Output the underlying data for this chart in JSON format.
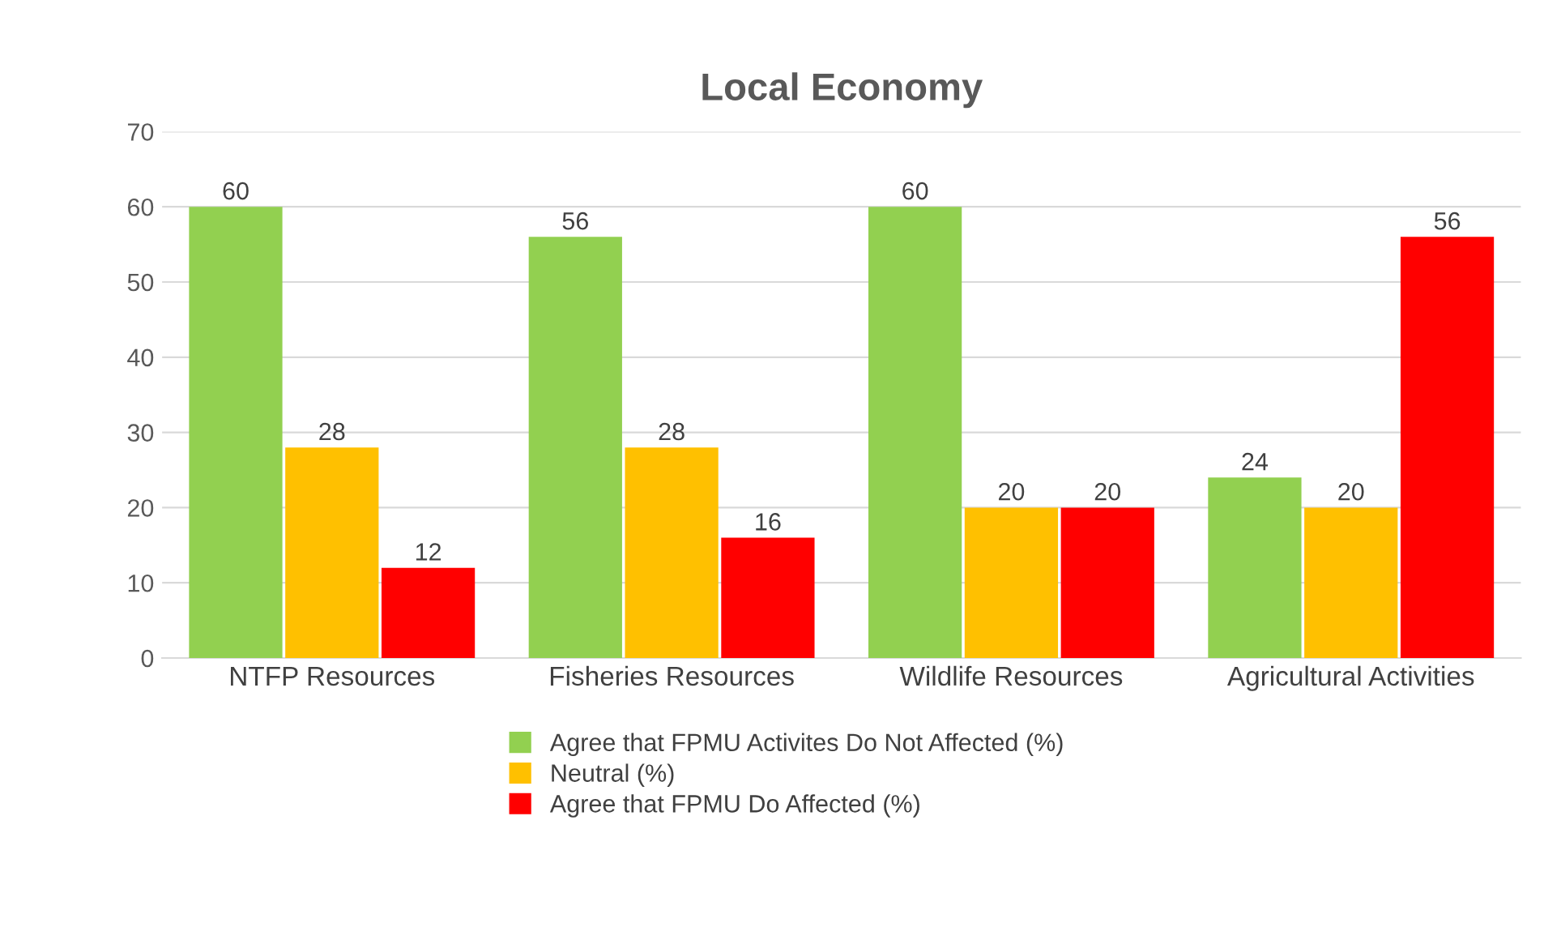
{
  "chart_data": {
    "type": "bar",
    "title": "Local Economy",
    "categories": [
      "NTFP Resources",
      "Fisheries Resources",
      "Wildlife Resources",
      "Agricultural Activities"
    ],
    "series": [
      {
        "name": "Agree that FPMU Activites Do Not Affected (%)",
        "color": "#92d050",
        "values": [
          60,
          56,
          60,
          24
        ]
      },
      {
        "name": "Neutral (%)",
        "color": "#ffc000",
        "values": [
          28,
          28,
          20,
          20
        ]
      },
      {
        "name": "Agree that FPMU Do Affected (%)",
        "color": "#ff0000",
        "values": [
          12,
          16,
          20,
          56
        ]
      }
    ],
    "ylim": [
      0,
      70
    ],
    "yticks": [
      0,
      10,
      20,
      30,
      40,
      50,
      60,
      70
    ],
    "grid": "y",
    "legend": "bottom",
    "data_labels": true
  }
}
